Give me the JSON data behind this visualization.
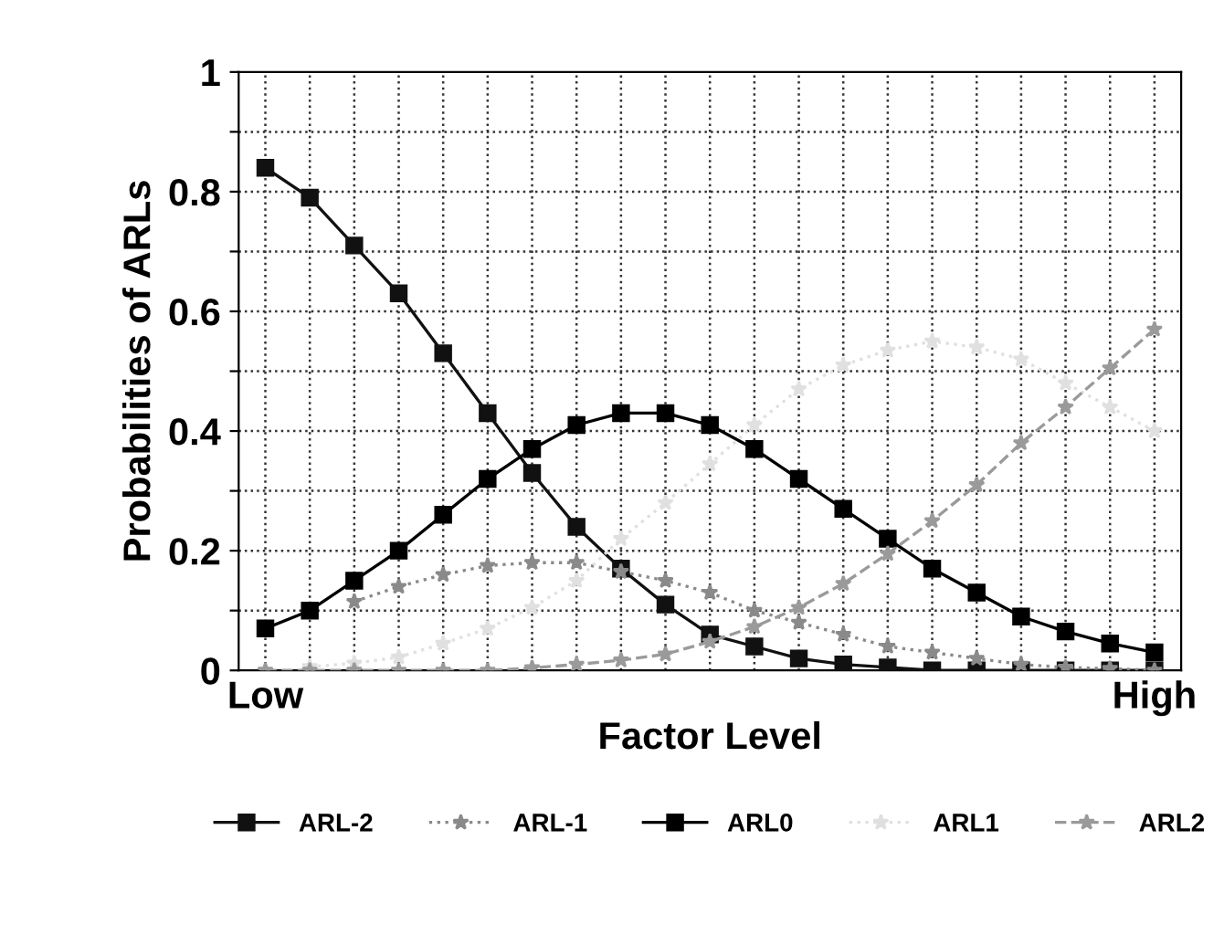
{
  "chart_data": {
    "type": "line",
    "xlabel": "Factor Level",
    "ylabel": "Probabilities of ARLs",
    "categories": [
      "Low",
      null,
      null,
      null,
      null,
      null,
      null,
      null,
      null,
      null,
      null,
      null,
      null,
      null,
      null,
      null,
      null,
      null,
      null,
      null,
      "High"
    ],
    "ylim": [
      0,
      1
    ],
    "yticks": [
      0,
      {
        "value": 0.1,
        "label": null
      },
      0.2,
      {
        "value": 0.3,
        "label": null
      },
      0.4,
      {
        "value": 0.5,
        "label": null
      },
      0.6,
      {
        "value": 0.7,
        "label": null
      },
      0.8,
      {
        "value": 0.9,
        "label": null
      },
      1
    ],
    "grid": true,
    "legend": "bottom",
    "series": [
      {
        "name": "ARL-2",
        "color": "#111111",
        "marker": "square",
        "line_style": "solid",
        "values": [
          0.84,
          0.79,
          0.71,
          0.63,
          0.53,
          0.43,
          0.33,
          0.24,
          0.17,
          0.11,
          0.06,
          0.04,
          0.02,
          0.01,
          0.005,
          0,
          0,
          0,
          0,
          0,
          0
        ]
      },
      {
        "name": "ARL-1",
        "color": "#8a8a8a",
        "marker": "star",
        "line_style": "dotted",
        "values": [
          null,
          null,
          0.115,
          0.14,
          0.16,
          0.175,
          0.18,
          0.18,
          0.165,
          0.15,
          0.13,
          0.1,
          0.08,
          0.06,
          0.04,
          0.03,
          0.02,
          0.01,
          0.005,
          0.003,
          0
        ]
      },
      {
        "name": "ARL0",
        "color": "#000000",
        "marker": "square",
        "line_style": "solid",
        "values": [
          0.07,
          0.1,
          0.15,
          0.2,
          0.26,
          0.32,
          0.37,
          0.41,
          0.43,
          0.43,
          0.41,
          0.37,
          0.32,
          0.27,
          0.22,
          0.17,
          0.13,
          0.09,
          0.065,
          0.045,
          0.03
        ]
      },
      {
        "name": "ARL1",
        "color": "#e0e0e0",
        "marker": "star",
        "line_style": "dotted",
        "values": [
          null,
          0.006,
          0.012,
          0.022,
          0.045,
          0.07,
          0.105,
          0.15,
          0.22,
          0.28,
          0.345,
          0.41,
          0.47,
          0.51,
          0.535,
          0.55,
          0.54,
          0.52,
          0.48,
          0.44,
          0.4
        ]
      },
      {
        "name": "ARL2",
        "color": "#9a9a9a",
        "marker": "star",
        "line_style": "dashed",
        "values": [
          0,
          0,
          0,
          0,
          0,
          0,
          0.004,
          0.01,
          0.017,
          0.027,
          0.048,
          0.073,
          0.105,
          0.145,
          0.195,
          0.25,
          0.31,
          0.38,
          0.44,
          0.505,
          0.57
        ]
      }
    ]
  }
}
